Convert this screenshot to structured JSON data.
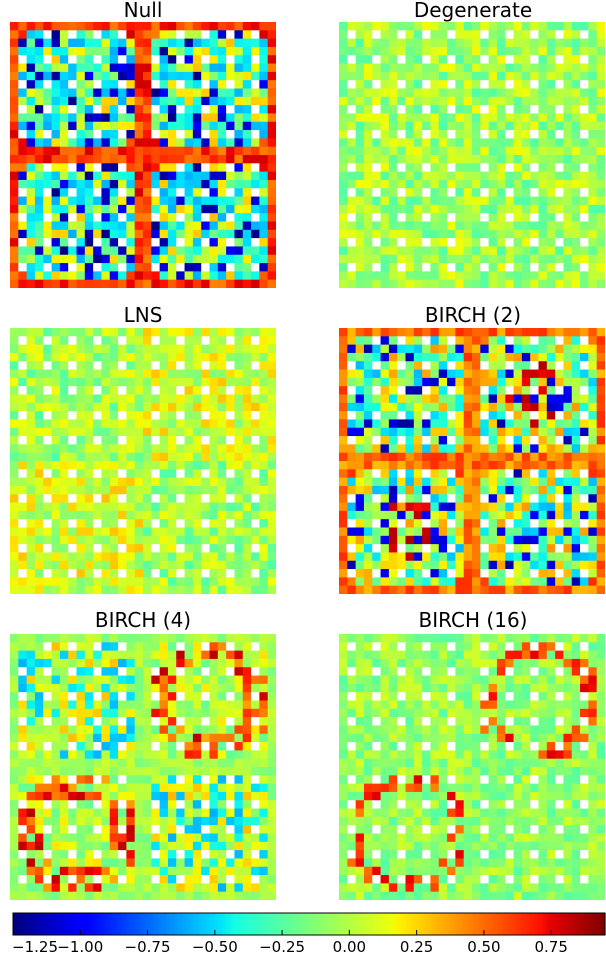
{
  "chart_data": [
    {
      "type": "heatmap",
      "title": "Null",
      "pattern": "null"
    },
    {
      "type": "heatmap",
      "title": "Degenerate",
      "pattern": "degenerate"
    },
    {
      "type": "heatmap",
      "title": "LNS",
      "pattern": "lns"
    },
    {
      "type": "heatmap",
      "title": "BIRCH (2)",
      "pattern": "birch2"
    },
    {
      "type": "heatmap",
      "title": "BIRCH (4)",
      "pattern": "birch4"
    },
    {
      "type": "heatmap",
      "title": "BIRCH (16)",
      "pattern": "birch16"
    }
  ],
  "grid_size": 32,
  "colorbar": {
    "colormap": "jet",
    "range": [
      -1.25,
      0.95
    ],
    "ticks": [
      -1.25,
      -1.0,
      -0.75,
      -0.5,
      -0.25,
      0.0,
      0.25,
      0.5,
      0.75
    ],
    "tick_labels": [
      "−1.25",
      "−1.00",
      "−0.75",
      "−0.50",
      "−0.25",
      "0.00",
      "0.25",
      "0.50",
      "0.75"
    ]
  }
}
